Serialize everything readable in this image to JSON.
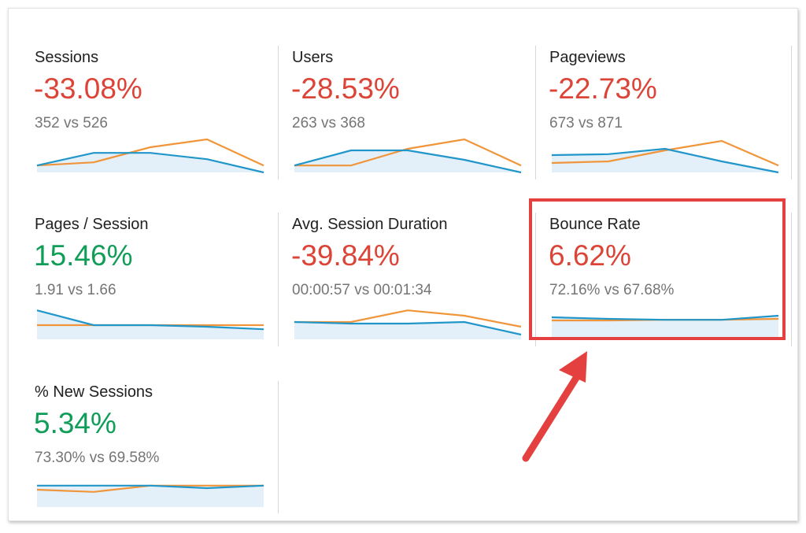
{
  "colors": {
    "negative": "#db4437",
    "positive": "#0f9d58",
    "current_line": "#2196c9",
    "previous_line": "#f0953a",
    "area_fill": "#e3f0fa",
    "highlight": "#e4403f"
  },
  "metrics": [
    {
      "title": "Sessions",
      "change": "-33.08%",
      "trend": "negative",
      "comparison": "352 vs 526",
      "sparkline": {
        "current": [
          0.78,
          0.38,
          0.38,
          0.58,
          1.0
        ],
        "previous": [
          0.78,
          0.68,
          0.2,
          -0.05,
          0.78
        ]
      }
    },
    {
      "title": "Users",
      "change": "-28.53%",
      "trend": "negative",
      "comparison": "263 vs 368",
      "sparkline": {
        "current": [
          0.78,
          0.3,
          0.3,
          0.6,
          1.0
        ],
        "previous": [
          0.78,
          0.78,
          0.25,
          -0.05,
          0.78
        ]
      }
    },
    {
      "title": "Pageviews",
      "change": "-22.73%",
      "trend": "negative",
      "comparison": "673 vs 871",
      "sparkline": {
        "current": [
          0.45,
          0.42,
          0.25,
          0.65,
          1.0
        ],
        "previous": [
          0.7,
          0.65,
          0.3,
          0.0,
          0.78
        ]
      }
    },
    {
      "title": "Pages / Session",
      "change": "15.46%",
      "trend": "positive",
      "comparison": "1.91 vs 1.66",
      "sparkline": {
        "current": [
          0.08,
          0.55,
          0.55,
          0.6,
          0.68
        ],
        "previous": [
          0.55,
          0.55,
          0.55,
          0.55,
          0.55
        ]
      }
    },
    {
      "title": "Avg. Session Duration",
      "change": "-39.84%",
      "trend": "negative",
      "comparison": "00:00:57 vs 00:01:34",
      "sparkline": {
        "current": [
          0.45,
          0.5,
          0.5,
          0.45,
          0.85
        ],
        "previous": [
          0.45,
          0.45,
          0.08,
          0.25,
          0.6
        ]
      }
    },
    {
      "title": "Bounce Rate",
      "change": "6.62%",
      "trend": "negative",
      "comparison": "72.16% vs 67.68%",
      "sparkline": {
        "current": [
          0.3,
          0.35,
          0.38,
          0.38,
          0.25
        ],
        "previous": [
          0.4,
          0.4,
          0.38,
          0.38,
          0.35
        ]
      }
    },
    {
      "title": "% New Sessions",
      "change": "5.34%",
      "trend": "positive",
      "comparison": "73.30% vs 69.58%",
      "sparkline": {
        "current": [
          0.32,
          0.32,
          0.32,
          0.4,
          0.32
        ],
        "previous": [
          0.45,
          0.52,
          0.32,
          0.32,
          0.32
        ]
      }
    }
  ]
}
